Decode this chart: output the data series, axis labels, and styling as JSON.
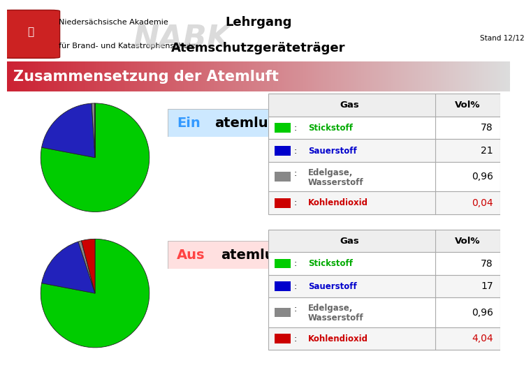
{
  "header_title1": "Lehrgang",
  "header_title2": "Atemschutzgeräteträger",
  "header_stand": "Stand 12/12",
  "header_org1": "Niedersächsische Akademie",
  "header_org2": "für Brand- und Katastrophenschutz",
  "section_title": "Zusammensetzung der Atemluft",
  "ein_prefix": "Ein",
  "ein_suffix": "atemluft",
  "ein_prefix_color": "#3399ff",
  "ein_bg_color": "#cce8ff",
  "aus_prefix": "Aus",
  "aus_suffix": "atemluft",
  "aus_prefix_color": "#ff4444",
  "aus_bg_color": "#ffe0e0",
  "ein_data": [
    78,
    21,
    0.96,
    0.04
  ],
  "aus_data": [
    78,
    17,
    0.96,
    4.04
  ],
  "gas_names": [
    "Stickstoff",
    "Sauerstoff",
    "Edelgase,\nWasserstoff",
    "Kohlendioxid"
  ],
  "gas_colors": [
    "#00cc00",
    "#0000cc",
    "#888888",
    "#cc0000"
  ],
  "gas_text_colors": [
    "#00aa00",
    "#0000cc",
    "#666666",
    "#cc0000"
  ],
  "ein_vol_values": [
    "78",
    "21",
    "0,96",
    "0,04"
  ],
  "aus_vol_values": [
    "78",
    "17",
    "0,96",
    "4,04"
  ],
  "vol_colors_ein": [
    "#000000",
    "#000000",
    "#000000",
    "#cc0000"
  ],
  "vol_colors_aus": [
    "#000000",
    "#000000",
    "#000000",
    "#cc0000"
  ],
  "bg_color": "#ffffff",
  "section_bg_left": "#cc2233",
  "section_bg_right": "#dddddd",
  "pie_colors": [
    "#00cc00",
    "#2222bb",
    "#888888",
    "#cc0000"
  ],
  "nabk_text_color": "#cccccc",
  "header_line_color": "#cccccc"
}
